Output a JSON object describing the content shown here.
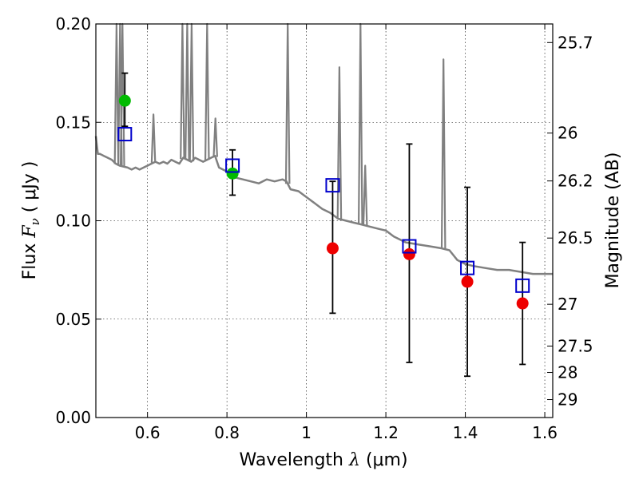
{
  "chart_data": {
    "type": "scatter",
    "xlabel_prefix": "Wavelength",
    "xlabel_symbol": "λ",
    "xlabel_unit": "(μm)",
    "ylabel_prefix": "Flux",
    "ylabel_symbol": "F",
    "ylabel_subscript": "ν",
    "ylabel_unit": "( μJy )",
    "y2label": "Magnitude (AB)",
    "xlim": [
      0.47,
      1.62
    ],
    "ylim": [
      0.0,
      0.2
    ],
    "grid": true,
    "x_ticks": [
      0.6,
      0.8,
      1.0,
      1.2,
      1.4,
      1.6
    ],
    "x_tick_labels": [
      "0.6",
      "0.8",
      "1",
      "1.2",
      "1.4",
      "1.6"
    ],
    "y_ticks": [
      0.0,
      0.05,
      0.1,
      0.15,
      0.2
    ],
    "y_tick_labels": [
      "0.00",
      "0.05",
      "0.10",
      "0.15",
      "0.20"
    ],
    "mag_ticks": [
      {
        "mag": 25.7,
        "label": "25.7"
      },
      {
        "mag": 26.0,
        "label": "26"
      },
      {
        "mag": 26.2,
        "label": "26.2"
      },
      {
        "mag": 26.5,
        "label": "26.5"
      },
      {
        "mag": 27.0,
        "label": "27"
      },
      {
        "mag": 27.5,
        "label": "27.5"
      },
      {
        "mag": 28.0,
        "label": "28"
      },
      {
        "mag": 29.0,
        "label": "29"
      }
    ],
    "colors": {
      "spectrum": "#808080",
      "green_points": "#00bb00",
      "red_points": "#ee0000",
      "model_squares": "#0000cc",
      "errorbars": "#000000"
    },
    "series": [
      {
        "name": "model spectrum",
        "style": "line",
        "x": [
          0.47,
          0.475,
          0.48,
          0.49,
          0.5,
          0.51,
          0.52,
          0.53,
          0.55,
          0.56,
          0.57,
          0.58,
          0.59,
          0.6,
          0.61,
          0.62,
          0.63,
          0.64,
          0.65,
          0.66,
          0.67,
          0.68,
          0.69,
          0.7,
          0.71,
          0.72,
          0.73,
          0.74,
          0.75,
          0.76,
          0.77,
          0.78,
          0.8,
          0.82,
          0.84,
          0.86,
          0.88,
          0.9,
          0.92,
          0.94,
          0.95,
          0.96,
          0.98,
          1.0,
          1.02,
          1.04,
          1.06,
          1.08,
          1.1,
          1.12,
          1.14,
          1.16,
          1.18,
          1.2,
          1.22,
          1.25,
          1.28,
          1.31,
          1.34,
          1.36,
          1.38,
          1.4,
          1.42,
          1.45,
          1.48,
          1.51,
          1.54,
          1.57,
          1.6,
          1.62
        ],
        "y": [
          0.143,
          0.134,
          0.134,
          0.133,
          0.132,
          0.131,
          0.129,
          0.128,
          0.127,
          0.126,
          0.127,
          0.126,
          0.127,
          0.128,
          0.129,
          0.13,
          0.129,
          0.13,
          0.129,
          0.131,
          0.13,
          0.129,
          0.132,
          0.131,
          0.13,
          0.132,
          0.131,
          0.13,
          0.131,
          0.132,
          0.133,
          0.127,
          0.125,
          0.122,
          0.121,
          0.12,
          0.119,
          0.121,
          0.12,
          0.121,
          0.12,
          0.116,
          0.115,
          0.112,
          0.109,
          0.106,
          0.104,
          0.101,
          0.1,
          0.099,
          0.098,
          0.097,
          0.096,
          0.095,
          0.092,
          0.089,
          0.088,
          0.087,
          0.086,
          0.085,
          0.08,
          0.078,
          0.077,
          0.076,
          0.075,
          0.075,
          0.074,
          0.073,
          0.073,
          0.073
        ]
      },
      {
        "name": "spectrum emission lines",
        "style": "spikes",
        "lines": [
          {
            "x": 0.522,
            "peak": 0.2
          },
          {
            "x": 0.531,
            "peak": 0.2
          },
          {
            "x": 0.537,
            "peak": 0.2
          },
          {
            "x": 0.615,
            "peak": 0.154
          },
          {
            "x": 0.688,
            "peak": 0.2
          },
          {
            "x": 0.7,
            "peak": 0.2
          },
          {
            "x": 0.711,
            "peak": 0.2
          },
          {
            "x": 0.75,
            "peak": 0.2
          },
          {
            "x": 0.771,
            "peak": 0.152
          },
          {
            "x": 0.953,
            "peak": 0.2
          },
          {
            "x": 1.083,
            "peak": 0.178
          },
          {
            "x": 1.136,
            "peak": 0.2
          },
          {
            "x": 1.148,
            "peak": 0.128
          },
          {
            "x": 1.345,
            "peak": 0.182
          }
        ]
      },
      {
        "name": "photometry (green)",
        "style": "markers",
        "points": [
          {
            "x": 0.543,
            "y": 0.161,
            "ylow": 0.148,
            "yhigh": 0.175
          },
          {
            "x": 0.814,
            "y": 0.124,
            "ylow": 0.113,
            "yhigh": 0.136
          }
        ]
      },
      {
        "name": "photometry (red)",
        "style": "markers",
        "points": [
          {
            "x": 1.066,
            "y": 0.086,
            "ylow": 0.053,
            "yhigh": 0.12
          },
          {
            "x": 1.259,
            "y": 0.083,
            "ylow": 0.028,
            "yhigh": 0.139
          },
          {
            "x": 1.405,
            "y": 0.069,
            "ylow": 0.021,
            "yhigh": 0.117
          },
          {
            "x": 1.544,
            "y": 0.058,
            "ylow": 0.027,
            "yhigh": 0.089
          }
        ]
      },
      {
        "name": "synthetic photometry (open squares)",
        "style": "squares",
        "points": [
          {
            "x": 0.543,
            "y": 0.144
          },
          {
            "x": 0.814,
            "y": 0.128
          },
          {
            "x": 1.066,
            "y": 0.118
          },
          {
            "x": 1.259,
            "y": 0.087
          },
          {
            "x": 1.405,
            "y": 0.076
          },
          {
            "x": 1.544,
            "y": 0.067
          }
        ]
      }
    ]
  }
}
